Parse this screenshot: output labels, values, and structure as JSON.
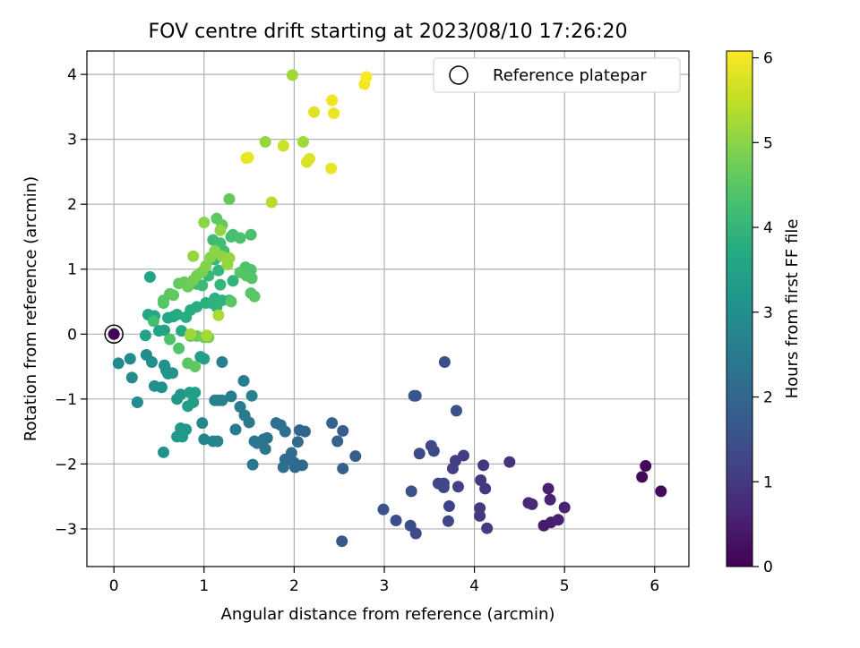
{
  "chart_data": {
    "type": "scatter",
    "title": "FOV centre drift starting at 2023/08/10 17:26:20",
    "xlabel": "Angular distance from reference (arcmin)",
    "ylabel": "Rotation from reference (arcmin)",
    "xlim": [
      -0.3,
      6.38
    ],
    "ylim": [
      -3.58,
      4.36
    ],
    "xticks": [
      0,
      1,
      2,
      3,
      4,
      5,
      6
    ],
    "yticks": [
      -3,
      -2,
      -1,
      0,
      1,
      2,
      3,
      4
    ],
    "grid": true,
    "legend": {
      "position": "top-right",
      "entries": [
        "Reference platepar"
      ]
    },
    "colormap": "viridis",
    "colorbar": {
      "label": "Hours from first FF file",
      "ticks": [
        0,
        1,
        2,
        3,
        4,
        5,
        6
      ],
      "range": [
        0,
        6.08
      ]
    },
    "reference_point": {
      "x": 0.0,
      "y": 0.0
    },
    "points": [
      [
        0.0,
        0.0,
        0.02
      ],
      [
        5.86,
        -2.2,
        0.15
      ],
      [
        5.9,
        -2.03,
        0.1
      ],
      [
        6.07,
        -2.42,
        0.12
      ],
      [
        4.77,
        -2.95,
        0.45
      ],
      [
        4.85,
        -2.9,
        0.5
      ],
      [
        4.93,
        -2.86,
        0.55
      ],
      [
        5.0,
        -2.67,
        0.6
      ],
      [
        4.82,
        -2.38,
        0.55
      ],
      [
        4.84,
        -2.55,
        0.6
      ],
      [
        4.6,
        -2.6,
        0.7
      ],
      [
        4.64,
        -2.62,
        0.75
      ],
      [
        4.39,
        -1.97,
        0.9
      ],
      [
        4.1,
        -2.02,
        0.95
      ],
      [
        4.12,
        -2.38,
        0.95
      ],
      [
        4.07,
        -2.25,
        1.0
      ],
      [
        4.06,
        -2.8,
        1.0
      ],
      [
        4.06,
        -2.68,
        1.05
      ],
      [
        4.14,
        -2.99,
        1.05
      ],
      [
        3.88,
        -1.87,
        1.1
      ],
      [
        3.79,
        -1.95,
        1.1
      ],
      [
        3.76,
        -2.07,
        1.15
      ],
      [
        3.82,
        -2.35,
        1.15
      ],
      [
        3.72,
        -2.65,
        1.2
      ],
      [
        3.71,
        -2.88,
        1.25
      ],
      [
        3.66,
        -2.3,
        1.25
      ],
      [
        3.6,
        -2.3,
        1.3
      ],
      [
        3.66,
        -2.36,
        1.3
      ],
      [
        3.55,
        -1.8,
        1.35
      ],
      [
        3.52,
        -1.72,
        1.35
      ],
      [
        3.39,
        -1.84,
        1.4
      ],
      [
        3.67,
        -0.43,
        1.45
      ],
      [
        3.8,
        -1.18,
        1.5
      ],
      [
        3.33,
        -0.95,
        1.6
      ],
      [
        3.35,
        -0.95,
        1.6
      ],
      [
        3.3,
        -2.42,
        1.5
      ],
      [
        3.29,
        -2.95,
        1.45
      ],
      [
        3.35,
        -3.07,
        1.4
      ],
      [
        3.13,
        -2.87,
        1.45
      ],
      [
        2.99,
        -2.7,
        1.55
      ],
      [
        2.53,
        -3.19,
        1.65
      ],
      [
        2.68,
        -1.88,
        1.8
      ],
      [
        2.54,
        -2.07,
        1.85
      ],
      [
        2.54,
        -1.49,
        1.85
      ],
      [
        2.48,
        -1.65,
        1.9
      ],
      [
        2.42,
        -1.37,
        1.95
      ],
      [
        2.12,
        -1.5,
        2.0
      ],
      [
        2.06,
        -1.48,
        2.0
      ],
      [
        2.09,
        -2.02,
        2.05
      ],
      [
        2.01,
        -2.05,
        2.05
      ],
      [
        2.0,
        -1.98,
        2.1
      ],
      [
        2.04,
        -1.66,
        2.1
      ],
      [
        1.97,
        -1.83,
        2.15
      ],
      [
        1.9,
        -1.93,
        2.15
      ],
      [
        1.88,
        -2.05,
        2.2
      ],
      [
        1.9,
        -1.5,
        2.2
      ],
      [
        1.85,
        -1.4,
        2.25
      ],
      [
        1.8,
        -1.37,
        2.25
      ],
      [
        1.7,
        -1.6,
        2.3
      ],
      [
        1.66,
        -1.62,
        2.3
      ],
      [
        1.68,
        -1.77,
        2.35
      ],
      [
        1.59,
        -1.68,
        2.35
      ],
      [
        1.56,
        -1.65,
        2.4
      ],
      [
        1.54,
        -2.01,
        2.4
      ],
      [
        1.5,
        -1.36,
        2.45
      ],
      [
        1.45,
        -1.25,
        2.45
      ],
      [
        1.4,
        -1.12,
        2.5
      ],
      [
        1.35,
        -1.47,
        2.5
      ],
      [
        1.3,
        -0.96,
        2.55
      ],
      [
        1.44,
        -0.72,
        2.55
      ],
      [
        1.53,
        -0.95,
        2.6
      ],
      [
        1.2,
        -1.02,
        2.6
      ],
      [
        1.16,
        -1.02,
        2.65
      ],
      [
        1.12,
        -1.02,
        2.65
      ],
      [
        1.2,
        -0.43,
        2.7
      ],
      [
        1.15,
        -1.65,
        2.7
      ],
      [
        1.1,
        -1.65,
        2.75
      ],
      [
        1.0,
        -1.62,
        2.75
      ],
      [
        0.98,
        -1.37,
        2.8
      ],
      [
        0.05,
        -0.45,
        2.85
      ],
      [
        0.18,
        -0.38,
        2.85
      ],
      [
        0.2,
        -0.67,
        2.9
      ],
      [
        0.26,
        -1.05,
        2.9
      ],
      [
        0.26,
        -1.05,
        2.95
      ],
      [
        0.36,
        -0.32,
        2.95
      ],
      [
        0.42,
        -0.43,
        3.0
      ],
      [
        0.45,
        -0.8,
        3.0
      ],
      [
        0.53,
        -0.82,
        3.05
      ],
      [
        0.56,
        -0.48,
        3.05
      ],
      [
        0.58,
        -0.56,
        3.1
      ],
      [
        0.55,
        -1.82,
        3.1
      ],
      [
        0.6,
        -0.61,
        3.15
      ],
      [
        0.65,
        -0.6,
        3.15
      ],
      [
        0.7,
        -1.0,
        3.2
      ],
      [
        0.74,
        -0.93,
        3.2
      ],
      [
        0.7,
        -1.58,
        3.25
      ],
      [
        0.74,
        -1.45,
        3.25
      ],
      [
        0.76,
        -1.58,
        3.3
      ],
      [
        0.8,
        -1.47,
        3.3
      ],
      [
        0.82,
        -1.11,
        3.35
      ],
      [
        0.84,
        -0.9,
        3.35
      ],
      [
        0.9,
        -0.9,
        3.4
      ],
      [
        0.88,
        -1.05,
        3.4
      ],
      [
        0.96,
        -0.35,
        3.45
      ],
      [
        1.0,
        -0.38,
        3.45
      ],
      [
        0.35,
        -0.02,
        3.5
      ],
      [
        0.5,
        0.05,
        3.5
      ],
      [
        0.56,
        0.06,
        3.55
      ],
      [
        0.4,
        0.88,
        3.55
      ],
      [
        0.38,
        0.3,
        3.6
      ],
      [
        0.45,
        0.28,
        3.6
      ],
      [
        0.6,
        0.25,
        3.65
      ],
      [
        0.66,
        0.27,
        3.65
      ],
      [
        0.7,
        0.3,
        3.7
      ],
      [
        0.75,
        0.05,
        3.7
      ],
      [
        0.8,
        0.26,
        3.75
      ],
      [
        0.85,
        0.37,
        3.75
      ],
      [
        0.92,
        0.42,
        3.8
      ],
      [
        1.02,
        0.48,
        3.8
      ],
      [
        1.08,
        0.48,
        3.85
      ],
      [
        1.12,
        0.55,
        3.85
      ],
      [
        1.14,
        0.42,
        3.9
      ],
      [
        1.2,
        0.52,
        3.9
      ],
      [
        1.28,
        0.52,
        3.95
      ],
      [
        1.32,
        0.82,
        3.95
      ],
      [
        1.18,
        0.76,
        4.0
      ],
      [
        1.16,
        0.98,
        4.0
      ],
      [
        1.12,
        1.15,
        4.05
      ],
      [
        1.05,
        0.9,
        4.05
      ],
      [
        1.0,
        0.95,
        4.1
      ],
      [
        0.98,
        0.75,
        4.1
      ],
      [
        0.92,
        0.77,
        4.15
      ],
      [
        1.1,
        1.45,
        4.15
      ],
      [
        1.18,
        1.4,
        4.2
      ],
      [
        1.22,
        1.28,
        4.2
      ],
      [
        1.3,
        1.5,
        4.25
      ],
      [
        1.32,
        1.53,
        4.25
      ],
      [
        1.4,
        1.48,
        4.3
      ],
      [
        1.52,
        1.53,
        4.3
      ],
      [
        1.46,
        1.03,
        4.35
      ],
      [
        1.52,
        0.99,
        4.35
      ],
      [
        1.47,
        0.9,
        4.4
      ],
      [
        1.53,
        0.86,
        4.4
      ],
      [
        1.4,
        0.95,
        4.45
      ],
      [
        1.52,
        0.63,
        4.45
      ],
      [
        1.56,
        0.58,
        4.5
      ],
      [
        1.28,
        2.08,
        4.6
      ],
      [
        1.14,
        1.78,
        4.55
      ],
      [
        1.2,
        1.68,
        4.6
      ],
      [
        0.55,
        0.48,
        4.4
      ],
      [
        0.55,
        0.52,
        4.45
      ],
      [
        0.62,
        0.62,
        4.5
      ],
      [
        0.66,
        0.6,
        4.55
      ],
      [
        0.72,
        0.78,
        4.6
      ],
      [
        0.78,
        0.8,
        4.65
      ],
      [
        0.82,
        0.73,
        4.7
      ],
      [
        0.88,
        0.83,
        4.75
      ],
      [
        0.92,
        0.9,
        4.8
      ],
      [
        0.98,
        0.96,
        4.85
      ],
      [
        1.02,
        1.05,
        4.9
      ],
      [
        1.07,
        1.18,
        4.95
      ],
      [
        1.12,
        1.28,
        5.0
      ],
      [
        1.2,
        1.2,
        5.05
      ],
      [
        1.26,
        1.07,
        5.1
      ],
      [
        1.28,
        1.17,
        5.1
      ],
      [
        1.0,
        1.72,
        5.0
      ],
      [
        1.18,
        1.6,
        5.05
      ],
      [
        0.88,
        1.2,
        5.1
      ],
      [
        0.44,
        0.2,
        4.2
      ],
      [
        0.62,
        -0.08,
        4.35
      ],
      [
        0.72,
        -0.22,
        4.4
      ],
      [
        0.82,
        -0.45,
        4.5
      ],
      [
        0.9,
        -0.5,
        4.55
      ],
      [
        0.85,
        -0.03,
        4.65
      ],
      [
        0.92,
        -0.03,
        4.7
      ],
      [
        1.0,
        -0.05,
        4.75
      ],
      [
        1.05,
        -0.05,
        4.8
      ],
      [
        0.85,
        0.0,
        5.2
      ],
      [
        1.03,
        -0.02,
        5.25
      ],
      [
        1.16,
        0.29,
        5.3
      ],
      [
        1.3,
        0.5,
        4.5
      ],
      [
        1.75,
        2.03,
        5.4
      ],
      [
        1.68,
        2.96,
        5.1
      ],
      [
        1.88,
        2.9,
        5.6
      ],
      [
        2.1,
        2.96,
        5.2
      ],
      [
        2.14,
        2.65,
        5.7
      ],
      [
        2.17,
        2.7,
        5.75
      ],
      [
        2.41,
        2.55,
        5.9
      ],
      [
        2.22,
        3.42,
        5.8
      ],
      [
        2.42,
        3.6,
        5.95
      ],
      [
        2.44,
        3.4,
        5.9
      ],
      [
        1.47,
        2.71,
        5.85
      ],
      [
        1.49,
        2.72,
        5.9
      ],
      [
        1.98,
        3.99,
        5.2
      ],
      [
        2.78,
        3.85,
        6.0
      ],
      [
        2.8,
        3.96,
        6.05
      ]
    ]
  }
}
